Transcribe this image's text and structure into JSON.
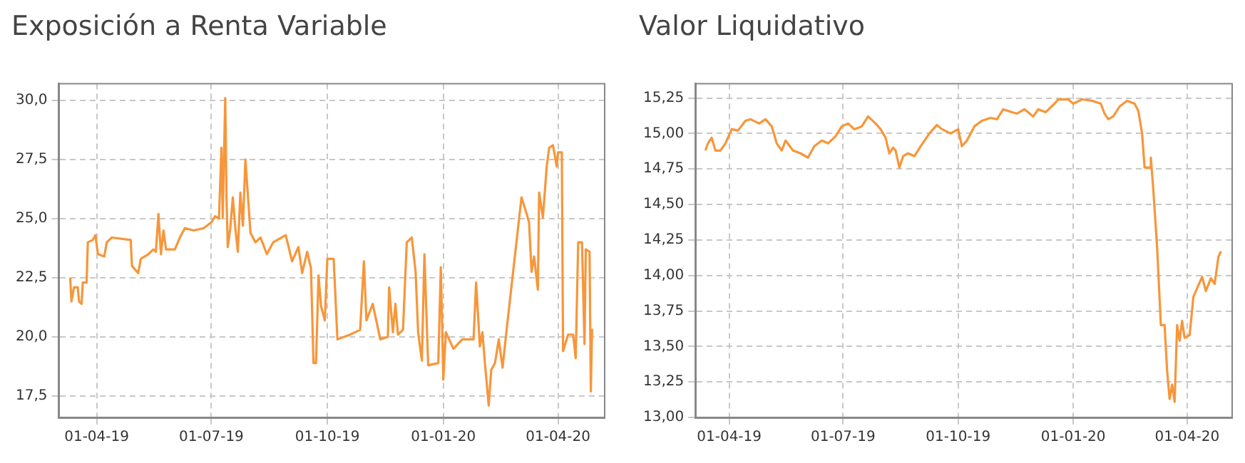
{
  "chart_data": [
    {
      "type": "line",
      "title": "Exposición a Renta Variable",
      "xlim": [
        "2019-03-02",
        "2020-05-08"
      ],
      "ylim": [
        16.6,
        30.7
      ],
      "xticks": [
        {
          "value": "2019-04-01",
          "label": "01-04-19"
        },
        {
          "value": "2019-07-01",
          "label": "01-07-19"
        },
        {
          "value": "2019-10-01",
          "label": "01-10-19"
        },
        {
          "value": "2020-01-01",
          "label": "01-01-20"
        },
        {
          "value": "2020-04-01",
          "label": "01-04-20"
        }
      ],
      "yticks": [
        {
          "value": 17.5,
          "label": "17,5"
        },
        {
          "value": 20,
          "label": "20,0"
        },
        {
          "value": 22.5,
          "label": "22,5"
        },
        {
          "value": 25,
          "label": "25,0"
        },
        {
          "value": 27.5,
          "label": "27,5"
        },
        {
          "value": 30,
          "label": "30,0"
        }
      ],
      "grid": true,
      "legend": false,
      "marker": "none",
      "line_style": "solid",
      "series": [
        {
          "color": "#f7963a",
          "x": [
            "2019-03-11",
            "2019-03-12",
            "2019-03-14",
            "2019-03-17",
            "2019-03-18",
            "2019-03-20",
            "2019-03-21",
            "2019-03-24",
            "2019-03-25",
            "2019-03-29",
            "2019-03-31",
            "2019-04-02",
            "2019-04-07",
            "2019-04-09",
            "2019-04-13",
            "2019-04-28",
            "2019-04-29",
            "2019-05-04",
            "2019-05-06",
            "2019-05-12",
            "2019-05-16",
            "2019-05-18",
            "2019-05-20",
            "2019-05-22",
            "2019-05-24",
            "2019-05-26",
            "2019-06-02",
            "2019-06-06",
            "2019-06-10",
            "2019-06-17",
            "2019-06-25",
            "2019-07-01",
            "2019-07-04",
            "2019-07-07",
            "2019-07-09",
            "2019-07-10",
            "2019-07-12",
            "2019-07-13",
            "2019-07-14",
            "2019-07-16",
            "2019-07-18",
            "2019-07-20",
            "2019-07-22",
            "2019-07-24",
            "2019-07-26",
            "2019-07-28",
            "2019-08-01",
            "2019-08-05",
            "2019-08-09",
            "2019-08-14",
            "2019-08-19",
            "2019-08-29",
            "2019-09-03",
            "2019-09-08",
            "2019-09-11",
            "2019-09-15",
            "2019-09-18",
            "2019-09-20",
            "2019-09-22",
            "2019-09-24",
            "2019-09-26",
            "2019-09-29",
            "2019-10-01",
            "2019-10-06",
            "2019-10-09",
            "2019-10-19",
            "2019-10-27",
            "2019-10-30",
            "2019-11-01",
            "2019-11-06",
            "2019-11-12",
            "2019-11-18",
            "2019-11-19",
            "2019-11-22",
            "2019-11-24",
            "2019-11-26",
            "2019-11-30",
            "2019-12-03",
            "2019-12-07",
            "2019-12-10",
            "2019-12-12",
            "2019-12-15",
            "2019-12-17",
            "2019-12-20",
            "2019-12-28",
            "2019-12-30",
            "2020-01-01",
            "2020-01-03",
            "2020-01-09",
            "2020-01-16",
            "2020-01-25",
            "2020-01-27",
            "2020-01-30",
            "2020-02-01",
            "2020-02-03",
            "2020-02-06",
            "2020-02-08",
            "2020-02-11",
            "2020-02-14",
            "2020-02-17",
            "2020-02-20",
            "2020-02-24",
            "2020-02-28",
            "2020-03-03",
            "2020-03-06",
            "2020-03-09",
            "2020-03-11",
            "2020-03-13",
            "2020-03-16",
            "2020-03-17",
            "2020-03-20",
            "2020-03-23",
            "2020-03-25",
            "2020-03-28",
            "2020-03-31",
            "2020-04-01",
            "2020-04-04",
            "2020-04-05",
            "2020-04-09",
            "2020-04-13",
            "2020-04-15",
            "2020-04-17",
            "2020-04-20",
            "2020-04-22",
            "2020-04-23",
            "2020-04-26",
            "2020-04-27",
            "2020-04-28"
          ],
          "values": [
            22.5,
            21.5,
            22.1,
            22.1,
            21.5,
            21.4,
            22.3,
            22.3,
            24.0,
            24.1,
            24.3,
            23.5,
            23.4,
            24.0,
            24.2,
            24.1,
            23.0,
            22.7,
            23.3,
            23.5,
            23.7,
            23.6,
            25.2,
            23.5,
            24.5,
            23.7,
            23.7,
            24.2,
            24.6,
            24.5,
            24.6,
            24.85,
            25.1,
            25.0,
            28.0,
            25.05,
            30.1,
            25.9,
            23.8,
            24.6,
            25.9,
            24.6,
            23.6,
            26.1,
            24.7,
            27.5,
            24.4,
            24.0,
            24.2,
            23.5,
            24.0,
            24.3,
            23.2,
            23.8,
            22.7,
            23.6,
            22.9,
            18.9,
            18.9,
            22.6,
            21.3,
            20.7,
            23.3,
            23.3,
            19.9,
            20.1,
            20.3,
            23.2,
            20.7,
            21.4,
            19.9,
            20.0,
            22.1,
            20.2,
            21.4,
            20.1,
            20.3,
            24.0,
            24.2,
            22.75,
            20.2,
            19.0,
            23.5,
            18.8,
            18.9,
            22.95,
            18.2,
            20.2,
            19.5,
            19.9,
            19.9,
            22.3,
            19.6,
            20.2,
            18.9,
            17.1,
            18.6,
            18.9,
            19.9,
            18.7,
            20.2,
            22.1,
            24.0,
            25.9,
            25.4,
            24.85,
            22.75,
            23.4,
            22.0,
            26.1,
            25.05,
            27.2,
            28.0,
            28.1,
            27.2,
            27.8,
            27.8,
            19.4,
            20.1,
            20.1,
            19.1,
            24.0,
            24.0,
            19.7,
            23.7,
            23.6,
            17.7,
            20.35
          ]
        }
      ]
    },
    {
      "type": "line",
      "title": "Valor Liquidativo",
      "xlim": [
        "2019-03-05",
        "2020-05-07"
      ],
      "ylim": [
        13,
        15.35
      ],
      "xticks": [
        {
          "value": "2019-04-01",
          "label": "01-04-19"
        },
        {
          "value": "2019-07-01",
          "label": "01-07-19"
        },
        {
          "value": "2019-10-01",
          "label": "01-10-19"
        },
        {
          "value": "2020-01-01",
          "label": "01-01-20"
        },
        {
          "value": "2020-04-01",
          "label": "01-04-20"
        }
      ],
      "yticks": [
        {
          "value": 13,
          "label": "13,00"
        },
        {
          "value": 13.25,
          "label": "13,25"
        },
        {
          "value": 13.5,
          "label": "13,50"
        },
        {
          "value": 13.75,
          "label": "13,75"
        },
        {
          "value": 14,
          "label": "14,00"
        },
        {
          "value": 14.25,
          "label": "14,25"
        },
        {
          "value": 14.5,
          "label": "14,50"
        },
        {
          "value": 14.75,
          "label": "14,75"
        },
        {
          "value": 15,
          "label": "15,00"
        },
        {
          "value": 15.25,
          "label": "15,25"
        }
      ],
      "grid": true,
      "legend": false,
      "marker": "none",
      "line_style": "solid",
      "series": [
        {
          "color": "#f7963a",
          "x": [
            "2019-03-13",
            "2019-03-15",
            "2019-03-18",
            "2019-03-21",
            "2019-03-25",
            "2019-03-29",
            "2019-04-03",
            "2019-04-08",
            "2019-04-14",
            "2019-04-18",
            "2019-04-25",
            "2019-04-30",
            "2019-05-05",
            "2019-05-09",
            "2019-05-13",
            "2019-05-16",
            "2019-05-22",
            "2019-05-28",
            "2019-06-03",
            "2019-06-08",
            "2019-06-14",
            "2019-06-19",
            "2019-06-25",
            "2019-06-30",
            "2019-07-05",
            "2019-07-10",
            "2019-07-16",
            "2019-07-21",
            "2019-07-27",
            "2019-07-31",
            "2019-08-04",
            "2019-08-07",
            "2019-08-10",
            "2019-08-12",
            "2019-08-15",
            "2019-08-18",
            "2019-08-22",
            "2019-08-27",
            "2019-09-01",
            "2019-09-08",
            "2019-09-14",
            "2019-09-18",
            "2019-09-25",
            "2019-10-01",
            "2019-10-04",
            "2019-10-08",
            "2019-10-14",
            "2019-10-20",
            "2019-10-27",
            "2019-11-01",
            "2019-11-06",
            "2019-11-13",
            "2019-11-17",
            "2019-11-23",
            "2019-11-30",
            "2019-12-04",
            "2019-12-10",
            "2019-12-17",
            "2019-12-20",
            "2019-12-28",
            "2020-01-01",
            "2020-01-08",
            "2020-01-16",
            "2020-01-23",
            "2020-01-26",
            "2020-01-29",
            "2020-02-02",
            "2020-02-07",
            "2020-02-13",
            "2020-02-19",
            "2020-02-22",
            "2020-02-25",
            "2020-02-27",
            "2020-03-02",
            "2020-03-03",
            "2020-03-05",
            "2020-03-08",
            "2020-03-11",
            "2020-03-14",
            "2020-03-16",
            "2020-03-18",
            "2020-03-20",
            "2020-03-22",
            "2020-03-24",
            "2020-03-26",
            "2020-03-28",
            "2020-03-30",
            "2020-04-03",
            "2020-04-06",
            "2020-04-09",
            "2020-04-13",
            "2020-04-16",
            "2020-04-20",
            "2020-04-23",
            "2020-04-26",
            "2020-04-28"
          ],
          "values": [
            14.88,
            14.93,
            14.97,
            14.88,
            14.88,
            14.93,
            15.03,
            15.02,
            15.09,
            15.1,
            15.07,
            15.1,
            15.05,
            14.93,
            14.88,
            14.95,
            14.88,
            14.86,
            14.83,
            14.91,
            14.95,
            14.93,
            14.98,
            15.05,
            15.07,
            15.03,
            15.05,
            15.12,
            15.07,
            15.03,
            14.97,
            14.86,
            14.9,
            14.88,
            14.76,
            14.84,
            14.86,
            14.84,
            14.91,
            15.0,
            15.06,
            15.03,
            15.0,
            15.03,
            14.91,
            14.95,
            15.05,
            15.09,
            15.11,
            15.1,
            15.17,
            15.15,
            15.14,
            15.17,
            15.12,
            15.17,
            15.15,
            15.21,
            15.24,
            15.24,
            15.21,
            15.24,
            15.23,
            15.21,
            15.14,
            15.1,
            15.12,
            15.19,
            15.23,
            15.21,
            15.16,
            15.0,
            14.76,
            14.76,
            14.83,
            14.6,
            14.2,
            13.65,
            13.65,
            13.33,
            13.13,
            13.23,
            13.11,
            13.65,
            13.54,
            13.68,
            13.56,
            13.58,
            13.85,
            13.91,
            13.99,
            13.89,
            13.98,
            13.94,
            14.13,
            14.17
          ]
        }
      ]
    }
  ]
}
